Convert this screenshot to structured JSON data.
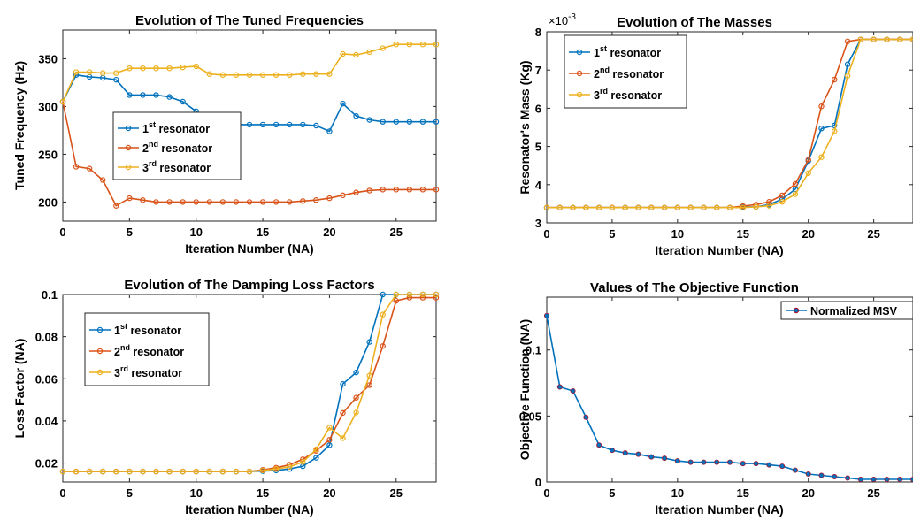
{
  "colors": {
    "s1": "#0072BD",
    "s2": "#D95319",
    "s3": "#EDB120",
    "msv": "#0072BD",
    "msv_edge": "#A2142F"
  },
  "chart_data": [
    {
      "type": "line",
      "title": "Evolution of The Tuned Frequencies",
      "xlabel": "Iteration Number (NA)",
      "ylabel": "Tuned Frequency (Hz)",
      "xlim": [
        0,
        28
      ],
      "ylim": [
        180,
        380
      ],
      "xticks": [
        "0",
        "5",
        "10",
        "15",
        "20",
        "25"
      ],
      "yticks": [
        "200",
        "250",
        "300",
        "350"
      ],
      "legend_position": "center-left",
      "x": [
        0,
        1,
        2,
        3,
        4,
        5,
        6,
        7,
        8,
        9,
        10,
        11,
        12,
        13,
        14,
        15,
        16,
        17,
        18,
        19,
        20,
        21,
        22,
        23,
        24,
        25,
        26,
        27,
        28
      ],
      "series": [
        {
          "name": "1st resonator",
          "label": "1",
          "sup": "st",
          "suffix": " resonator",
          "values": [
            305,
            333,
            331,
            330,
            328,
            312,
            312,
            312,
            310,
            305,
            295,
            282,
            281,
            281,
            281,
            281,
            281,
            281,
            281,
            280,
            274,
            303,
            290,
            286,
            284,
            284,
            284,
            284,
            284
          ]
        },
        {
          "name": "2nd resonator",
          "label": "2",
          "sup": "nd",
          "suffix": " resonator",
          "values": [
            305,
            237,
            235,
            223,
            196,
            204,
            202,
            200,
            200,
            200,
            200,
            200,
            200,
            200,
            200,
            200,
            200,
            200,
            201,
            202,
            204,
            207,
            210,
            212,
            213,
            213,
            213,
            213,
            213
          ]
        },
        {
          "name": "3rd resonator",
          "label": "3",
          "sup": "rd",
          "suffix": " resonator",
          "values": [
            305,
            336,
            336,
            335,
            335,
            340,
            340,
            340,
            340,
            341,
            342,
            334,
            333,
            333,
            333,
            333,
            333,
            333,
            334,
            334,
            334,
            355,
            354,
            357,
            361,
            365,
            365,
            365,
            365
          ]
        }
      ]
    },
    {
      "type": "line",
      "title": "Evolution of The Masses",
      "xlabel": "Iteration Number (NA)",
      "ylabel": "Resonator's Mass (Kg)",
      "exponent_label": "×10",
      "exponent_power": "-3",
      "xlim": [
        0,
        28
      ],
      "ylim": [
        3,
        8
      ],
      "xticks": [
        "0",
        "5",
        "10",
        "15",
        "20",
        "25"
      ],
      "yticks": [
        "3",
        "4",
        "5",
        "6",
        "7",
        "8"
      ],
      "legend_position": "top-left",
      "x": [
        0,
        1,
        2,
        3,
        4,
        5,
        6,
        7,
        8,
        9,
        10,
        11,
        12,
        13,
        14,
        15,
        16,
        17,
        18,
        19,
        20,
        21,
        22,
        23,
        24,
        25,
        26,
        27,
        28
      ],
      "series": [
        {
          "name": "1st resonator",
          "label": "1",
          "sup": "st",
          "suffix": " resonator",
          "values": [
            3.4,
            3.4,
            3.4,
            3.4,
            3.4,
            3.4,
            3.4,
            3.4,
            3.4,
            3.4,
            3.4,
            3.4,
            3.4,
            3.4,
            3.4,
            3.42,
            3.42,
            3.48,
            3.62,
            3.88,
            4.62,
            5.47,
            5.55,
            7.15,
            7.8,
            7.8,
            7.8,
            7.8,
            7.8
          ]
        },
        {
          "name": "2nd resonator",
          "label": "2",
          "sup": "nd",
          "suffix": " resonator",
          "values": [
            3.4,
            3.4,
            3.4,
            3.4,
            3.4,
            3.4,
            3.4,
            3.4,
            3.4,
            3.4,
            3.4,
            3.4,
            3.4,
            3.4,
            3.4,
            3.44,
            3.48,
            3.55,
            3.72,
            4.02,
            4.65,
            6.05,
            6.75,
            7.75,
            7.8,
            7.8,
            7.8,
            7.8,
            7.8
          ]
        },
        {
          "name": "3rd resonator",
          "label": "3",
          "sup": "rd",
          "suffix": " resonator",
          "values": [
            3.4,
            3.4,
            3.4,
            3.4,
            3.4,
            3.4,
            3.4,
            3.4,
            3.4,
            3.4,
            3.4,
            3.4,
            3.4,
            3.4,
            3.4,
            3.4,
            3.42,
            3.45,
            3.55,
            3.75,
            4.3,
            4.72,
            5.4,
            6.85,
            7.8,
            7.8,
            7.8,
            7.8,
            7.8
          ]
        }
      ]
    },
    {
      "type": "line",
      "title": "Evolution of The Damping Loss Factors",
      "xlabel": "Iteration Number (NA)",
      "ylabel": "Loss Factor (NA)",
      "xlim": [
        0,
        28
      ],
      "ylim": [
        0.011,
        0.1
      ],
      "xticks": [
        "0",
        "5",
        "10",
        "15",
        "20",
        "25"
      ],
      "yticks": [
        "0.02",
        "0.04",
        "0.06",
        "0.08",
        "0.1"
      ],
      "legend_position": "top-left",
      "x": [
        0,
        1,
        2,
        3,
        4,
        5,
        6,
        7,
        8,
        9,
        10,
        11,
        12,
        13,
        14,
        15,
        16,
        17,
        18,
        19,
        20,
        21,
        22,
        23,
        24,
        25,
        26,
        27,
        28
      ],
      "series": [
        {
          "name": "1st resonator",
          "label": "1",
          "sup": "st",
          "suffix": " resonator",
          "values": [
            0.016,
            0.016,
            0.016,
            0.016,
            0.016,
            0.016,
            0.016,
            0.016,
            0.016,
            0.016,
            0.016,
            0.016,
            0.016,
            0.016,
            0.016,
            0.0162,
            0.0165,
            0.0172,
            0.0185,
            0.0225,
            0.0285,
            0.0575,
            0.063,
            0.0775,
            0.1,
            0.1,
            0.1,
            0.1,
            0.1
          ]
        },
        {
          "name": "2nd resonator",
          "label": "2",
          "sup": "nd",
          "suffix": " resonator",
          "values": [
            0.016,
            0.016,
            0.016,
            0.016,
            0.016,
            0.016,
            0.016,
            0.016,
            0.016,
            0.016,
            0.016,
            0.016,
            0.016,
            0.016,
            0.016,
            0.0168,
            0.0178,
            0.0192,
            0.0218,
            0.0258,
            0.031,
            0.0438,
            0.051,
            0.057,
            0.0755,
            0.097,
            0.0985,
            0.0985,
            0.0985
          ]
        },
        {
          "name": "3rd resonator",
          "label": "3",
          "sup": "rd",
          "suffix": " resonator",
          "values": [
            0.016,
            0.016,
            0.016,
            0.016,
            0.016,
            0.016,
            0.016,
            0.016,
            0.016,
            0.016,
            0.016,
            0.016,
            0.016,
            0.016,
            0.016,
            0.0165,
            0.0172,
            0.0182,
            0.0205,
            0.0265,
            0.0368,
            0.0318,
            0.044,
            0.0615,
            0.0905,
            0.1,
            0.1,
            0.1,
            0.1
          ]
        }
      ]
    },
    {
      "type": "line",
      "title": "Values of The Objective Function",
      "xlabel": "Iteration Number (NA)",
      "ylabel": "Objective Function (NA)",
      "xlim": [
        0,
        28
      ],
      "ylim": [
        0,
        0.14
      ],
      "xticks": [
        "0",
        "5",
        "10",
        "15",
        "20",
        "25"
      ],
      "yticks": [
        "0",
        "0.05",
        "0.1"
      ],
      "legend_position": "top-right",
      "x": [
        0,
        1,
        2,
        3,
        4,
        5,
        6,
        7,
        8,
        9,
        10,
        11,
        12,
        13,
        14,
        15,
        16,
        17,
        18,
        19,
        20,
        21,
        22,
        23,
        24,
        25,
        26,
        27,
        28
      ],
      "series": [
        {
          "name": "Normalized MSV",
          "label": "Normalized MSV",
          "sup": "",
          "suffix": "",
          "values": [
            0.126,
            0.072,
            0.069,
            0.049,
            0.028,
            0.024,
            0.022,
            0.021,
            0.019,
            0.018,
            0.016,
            0.015,
            0.015,
            0.015,
            0.015,
            0.014,
            0.014,
            0.013,
            0.012,
            0.009,
            0.006,
            0.005,
            0.004,
            0.003,
            0.002,
            0.002,
            0.002,
            0.002,
            0.002
          ]
        }
      ]
    }
  ]
}
